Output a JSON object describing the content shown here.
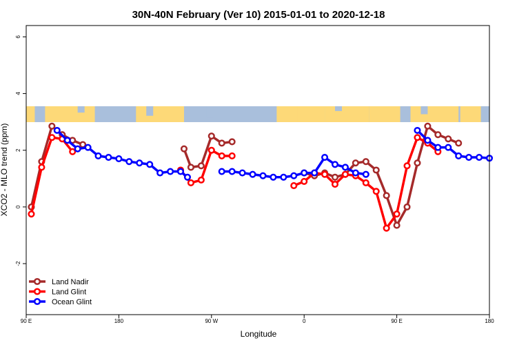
{
  "chart_data": {
    "type": "line",
    "title": "30N-40N February (Ver 10)   2015-01-01 to 2020-12-18",
    "xlabel": "Longitude",
    "ylabel": "XCO2 - MLO trend (ppm)",
    "xlim": [
      -90,
      180
    ],
    "ylim": [
      -3.8,
      6.4
    ],
    "x_ticks": [
      -90,
      -36,
      18,
      72,
      126,
      180
    ],
    "x_tick_labels": [
      "90 E",
      "180",
      "90 W",
      "0",
      "90 E",
      "180"
    ],
    "y_ticks": [
      -2,
      0,
      2,
      4,
      6
    ],
    "y_tick_labels": [
      "-2",
      "0",
      "2",
      "4",
      "6"
    ],
    "colors": {
      "land_nadir": "#a52a2a",
      "land_glint": "#ff0000",
      "ocean_glint": "#0000ff",
      "map_ocean": "#a9bfdc",
      "map_land": "#fdd978"
    },
    "legend_position": "bottom-left",
    "series": [
      {
        "name": "Land Nadir",
        "key": "land_nadir",
        "x": [
          -87,
          -81,
          -75,
          -69,
          -63,
          -57,
          null,
          2,
          6,
          12,
          18,
          24,
          30,
          36,
          null,
          72,
          78,
          84,
          90,
          96,
          102,
          108,
          114,
          120,
          126,
          132,
          138,
          144,
          150,
          156,
          162
        ],
        "y": [
          0.0,
          1.6,
          2.85,
          2.55,
          2.35,
          2.2,
          null,
          2.05,
          1.4,
          1.45,
          2.5,
          2.25,
          2.3,
          null,
          null,
          1.2,
          1.1,
          1.2,
          1.05,
          1.15,
          1.55,
          1.6,
          1.3,
          0.4,
          -0.65,
          0.0,
          1.55,
          2.85,
          2.55,
          2.4,
          2.25
        ],
        "series_note": ""
      },
      {
        "name": "Land Glint",
        "key": "land_glint",
        "x": [
          -87,
          -81,
          -75,
          -69,
          -63,
          null,
          0,
          6,
          12,
          18,
          24,
          30,
          null,
          66,
          72,
          78,
          84,
          90,
          96,
          102,
          108,
          114,
          120,
          126,
          132,
          138,
          144,
          150,
          156
        ],
        "y": [
          -0.25,
          1.4,
          2.45,
          2.4,
          1.95,
          null,
          1.3,
          0.85,
          0.95,
          2.0,
          1.8,
          1.8,
          null,
          0.75,
          0.9,
          1.2,
          1.15,
          0.8,
          1.15,
          1.1,
          0.85,
          0.55,
          -0.75,
          -0.25,
          1.45,
          2.45,
          2.25,
          1.95,
          null
        ],
        "series_note": ""
      },
      {
        "name": "Ocean Glint",
        "key": "ocean_glint",
        "x": [
          -72,
          -66,
          -60,
          -54,
          -48,
          -42,
          -36,
          -30,
          -24,
          -18,
          -12,
          -6,
          0,
          4,
          null,
          24,
          30,
          36,
          42,
          48,
          54,
          60,
          66,
          72,
          78,
          84,
          90,
          96,
          102,
          108,
          null,
          138,
          144,
          150,
          156,
          162,
          168,
          174,
          180
        ],
        "y": [
          2.7,
          2.35,
          2.05,
          2.1,
          1.8,
          1.75,
          1.7,
          1.6,
          1.55,
          1.5,
          1.2,
          1.25,
          1.25,
          1.05,
          null,
          1.25,
          1.25,
          1.2,
          1.15,
          1.1,
          1.05,
          1.05,
          1.1,
          1.2,
          1.2,
          1.75,
          1.5,
          1.4,
          1.2,
          1.15,
          null,
          2.7,
          2.35,
          2.1,
          2.1,
          1.8,
          1.75,
          1.75,
          1.72
        ]
      }
    ]
  }
}
